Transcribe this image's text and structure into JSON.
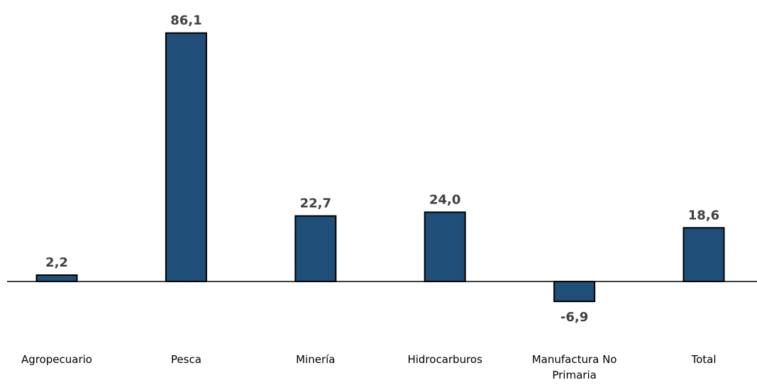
{
  "chart_data": {
    "type": "bar",
    "categories": [
      "Agropecuario",
      "Pesca",
      "Minería",
      "Hidrocarburos",
      "Manufactura No Primaria",
      "Total"
    ],
    "values": [
      2.2,
      86.1,
      22.7,
      24.0,
      -6.9,
      18.6
    ],
    "value_labels": [
      "2,2",
      "86,1",
      "22,7",
      "24,0",
      "-6,9",
      "18,6"
    ],
    "bar_color": "#1f4e79",
    "grid": false,
    "legend": "none"
  }
}
